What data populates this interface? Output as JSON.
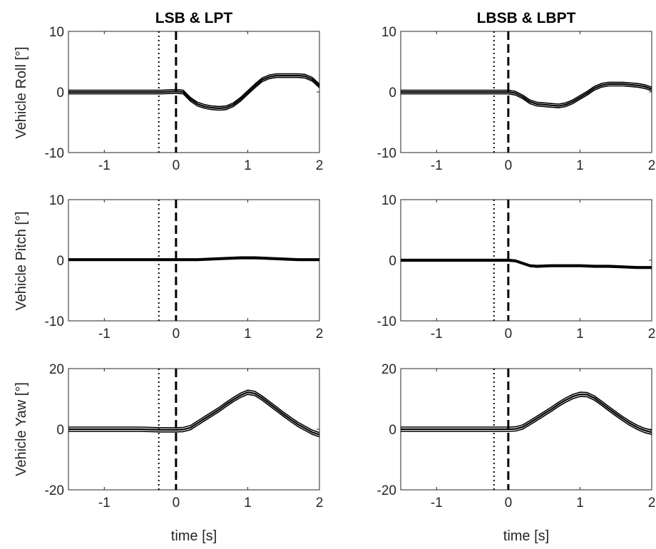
{
  "figure": {
    "column_titles": [
      "LSB & LPT",
      "LBSB & LBPT"
    ],
    "row_ylabels": [
      "Vehicle Roll [°]",
      "Vehicle Pitch [°]",
      "Vehicle Yaw [°]"
    ],
    "xlabel": "time [s]"
  },
  "chart_data": [
    {
      "type": "line",
      "title": "LSB & LPT",
      "ylabel": "Vehicle Roll [°]",
      "xlabel": "",
      "xlim": [
        -1.5,
        2
      ],
      "ylim": [
        -10,
        10
      ],
      "xticks": [
        -1,
        0,
        1,
        2
      ],
      "yticks": [
        -10,
        0,
        10
      ],
      "reference_lines": {
        "dotted_x": -0.24,
        "dashed_x": 0
      },
      "series_style": "mean trace with thin outline band",
      "series": [
        {
          "x": [
            -1.5,
            -1.0,
            -0.5,
            -0.2,
            0.0,
            0.1,
            0.2,
            0.3,
            0.4,
            0.5,
            0.6,
            0.7,
            0.8,
            0.9,
            1.0,
            1.1,
            1.2,
            1.3,
            1.4,
            1.5,
            1.6,
            1.7,
            1.8,
            1.9,
            2.0
          ],
          "y": [
            0.0,
            0.0,
            0.0,
            0.0,
            0.1,
            0.0,
            -1.2,
            -2.0,
            -2.4,
            -2.6,
            -2.7,
            -2.6,
            -2.1,
            -1.2,
            -0.1,
            1.0,
            2.0,
            2.5,
            2.7,
            2.7,
            2.7,
            2.7,
            2.6,
            2.1,
            1.0
          ],
          "band": 0.3
        }
      ]
    },
    {
      "type": "line",
      "title": "LBSB & LBPT",
      "ylabel": "",
      "xlabel": "",
      "xlim": [
        -1.5,
        2
      ],
      "ylim": [
        -10,
        10
      ],
      "xticks": [
        -1,
        0,
        1,
        2
      ],
      "yticks": [
        -10,
        0,
        10
      ],
      "reference_lines": {
        "dotted_x": -0.2,
        "dashed_x": 0
      },
      "series_style": "mean trace with thin outline band",
      "series": [
        {
          "x": [
            -1.5,
            -1.0,
            -0.5,
            -0.2,
            0.0,
            0.1,
            0.2,
            0.3,
            0.4,
            0.5,
            0.6,
            0.7,
            0.8,
            0.9,
            1.0,
            1.1,
            1.2,
            1.3,
            1.4,
            1.5,
            1.6,
            1.7,
            1.8,
            1.9,
            2.0
          ],
          "y": [
            0.0,
            0.0,
            0.0,
            0.0,
            0.0,
            -0.2,
            -0.8,
            -1.6,
            -2.0,
            -2.1,
            -2.2,
            -2.3,
            -2.1,
            -1.6,
            -0.9,
            -0.2,
            0.6,
            1.1,
            1.3,
            1.3,
            1.3,
            1.2,
            1.1,
            0.9,
            0.5
          ],
          "band": 0.3
        }
      ]
    },
    {
      "type": "line",
      "title": "",
      "ylabel": "Vehicle Pitch [°]",
      "xlabel": "",
      "xlim": [
        -1.5,
        2
      ],
      "ylim": [
        -10,
        10
      ],
      "xticks": [
        -1,
        0,
        1,
        2
      ],
      "yticks": [
        -10,
        0,
        10
      ],
      "reference_lines": {
        "dotted_x": -0.24,
        "dashed_x": 0
      },
      "series_style": "mean trace with thin outline band",
      "series": [
        {
          "x": [
            -1.5,
            -1.0,
            -0.5,
            0.0,
            0.3,
            0.5,
            0.7,
            0.9,
            1.0,
            1.1,
            1.3,
            1.5,
            1.7,
            1.9,
            2.0
          ],
          "y": [
            0.1,
            0.1,
            0.1,
            0.1,
            0.1,
            0.2,
            0.3,
            0.4,
            0.4,
            0.4,
            0.3,
            0.2,
            0.1,
            0.1,
            0.1
          ],
          "band": 0.15
        }
      ]
    },
    {
      "type": "line",
      "title": "",
      "ylabel": "",
      "xlabel": "",
      "xlim": [
        -1.5,
        2
      ],
      "ylim": [
        -10,
        10
      ],
      "xticks": [
        -1,
        0,
        1,
        2
      ],
      "yticks": [
        -10,
        0,
        10
      ],
      "reference_lines": {
        "dotted_x": -0.2,
        "dashed_x": 0
      },
      "series_style": "mean trace with thin outline band",
      "series": [
        {
          "x": [
            -1.5,
            -1.0,
            -0.5,
            0.0,
            0.1,
            0.2,
            0.3,
            0.4,
            0.6,
            0.8,
            1.0,
            1.2,
            1.4,
            1.6,
            1.8,
            2.0
          ],
          "y": [
            0.0,
            0.0,
            0.0,
            0.0,
            -0.1,
            -0.5,
            -0.9,
            -1.0,
            -0.9,
            -0.9,
            -0.9,
            -1.0,
            -1.0,
            -1.1,
            -1.2,
            -1.2
          ],
          "band": 0.15
        }
      ]
    },
    {
      "type": "line",
      "title": "",
      "ylabel": "Vehicle Yaw [°]",
      "xlabel": "time [s]",
      "xlim": [
        -1.5,
        2
      ],
      "ylim": [
        -20,
        20
      ],
      "xticks": [
        -1,
        0,
        1,
        2
      ],
      "yticks": [
        -20,
        0,
        20
      ],
      "reference_lines": {
        "dotted_x": -0.24,
        "dashed_x": 0
      },
      "series_style": "mean trace with thin outline band",
      "series": [
        {
          "x": [
            -1.5,
            -1.0,
            -0.5,
            -0.2,
            0.0,
            0.1,
            0.2,
            0.3,
            0.4,
            0.5,
            0.6,
            0.7,
            0.8,
            0.9,
            1.0,
            1.1,
            1.2,
            1.3,
            1.4,
            1.5,
            1.6,
            1.7,
            1.8,
            1.9,
            2.0
          ],
          "y": [
            0.0,
            0.0,
            0.0,
            -0.2,
            -0.2,
            -0.1,
            0.5,
            2.0,
            3.5,
            5.0,
            6.5,
            8.2,
            9.8,
            11.2,
            12.2,
            11.8,
            10.3,
            8.5,
            6.7,
            4.9,
            3.2,
            1.6,
            0.3,
            -1.0,
            -1.8
          ],
          "band": 0.7
        }
      ]
    },
    {
      "type": "line",
      "title": "",
      "ylabel": "",
      "xlabel": "time [s]",
      "xlim": [
        -1.5,
        2
      ],
      "ylim": [
        -20,
        20
      ],
      "xticks": [
        -1,
        0,
        1,
        2
      ],
      "yticks": [
        -20,
        0,
        20
      ],
      "reference_lines": {
        "dotted_x": -0.2,
        "dashed_x": 0
      },
      "series_style": "mean trace with thin outline band",
      "series": [
        {
          "x": [
            -1.5,
            -1.0,
            -0.5,
            -0.2,
            0.0,
            0.1,
            0.2,
            0.3,
            0.4,
            0.5,
            0.6,
            0.7,
            0.8,
            0.9,
            1.0,
            1.1,
            1.2,
            1.3,
            1.4,
            1.5,
            1.6,
            1.7,
            1.8,
            1.9,
            2.0
          ],
          "y": [
            0.0,
            0.0,
            0.0,
            0.0,
            0.0,
            0.1,
            0.7,
            2.1,
            3.6,
            5.1,
            6.6,
            8.2,
            9.6,
            10.8,
            11.5,
            11.4,
            10.3,
            8.6,
            6.8,
            5.1,
            3.4,
            1.9,
            0.6,
            -0.4,
            -1.0
          ],
          "band": 0.7
        }
      ]
    }
  ]
}
